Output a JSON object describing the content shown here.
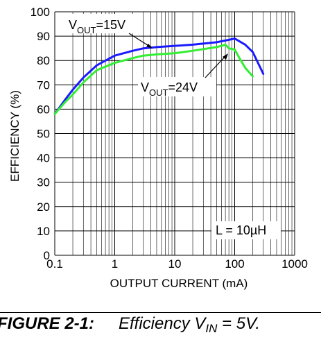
{
  "chart_data": {
    "type": "line",
    "x_scale": "log",
    "xlim": [
      0.1,
      1000
    ],
    "ylim": [
      0,
      100
    ],
    "grid": true,
    "xlabel": "OUTPUT CURRENT (mA)",
    "ylabel": "EFFICIENCY (%)",
    "x_tick_labels": [
      "0.1",
      "1",
      "10",
      "100",
      "1000"
    ],
    "y_tick_labels": [
      "0",
      "10",
      "20",
      "30",
      "40",
      "50",
      "60",
      "70",
      "80",
      "90",
      "100"
    ],
    "series": [
      {
        "name_main": "V",
        "name_sub": "OUT",
        "name_value": "=15V",
        "color": "#1a1aff",
        "x": [
          0.1,
          0.15,
          0.2,
          0.3,
          0.5,
          1,
          2,
          3,
          5,
          10,
          20,
          50,
          80,
          100,
          150,
          200,
          300
        ],
        "y": [
          58,
          64,
          68,
          73,
          78,
          82,
          84,
          85,
          85.5,
          86,
          86.5,
          87.5,
          88.5,
          89,
          86.5,
          83.5,
          74.5
        ]
      },
      {
        "name_main": "V",
        "name_sub": "OUT",
        "name_value": "=24V",
        "color": "#33ee33",
        "x": [
          0.1,
          0.15,
          0.2,
          0.3,
          0.5,
          1,
          2,
          3,
          5,
          10,
          20,
          50,
          70,
          80,
          100,
          120,
          150,
          200
        ],
        "y": [
          58,
          63,
          66,
          71,
          76,
          79,
          81,
          82,
          82.5,
          83,
          84,
          85.5,
          86.5,
          85,
          84.5,
          81,
          77,
          73.5
        ]
      }
    ],
    "annotations": {
      "inductor": "L = 10µH"
    }
  },
  "caption": {
    "label": "FIGURE 2-1:",
    "text_main": "Efficiency V",
    "text_sub": "IN",
    "text_rest": " = 5V."
  }
}
